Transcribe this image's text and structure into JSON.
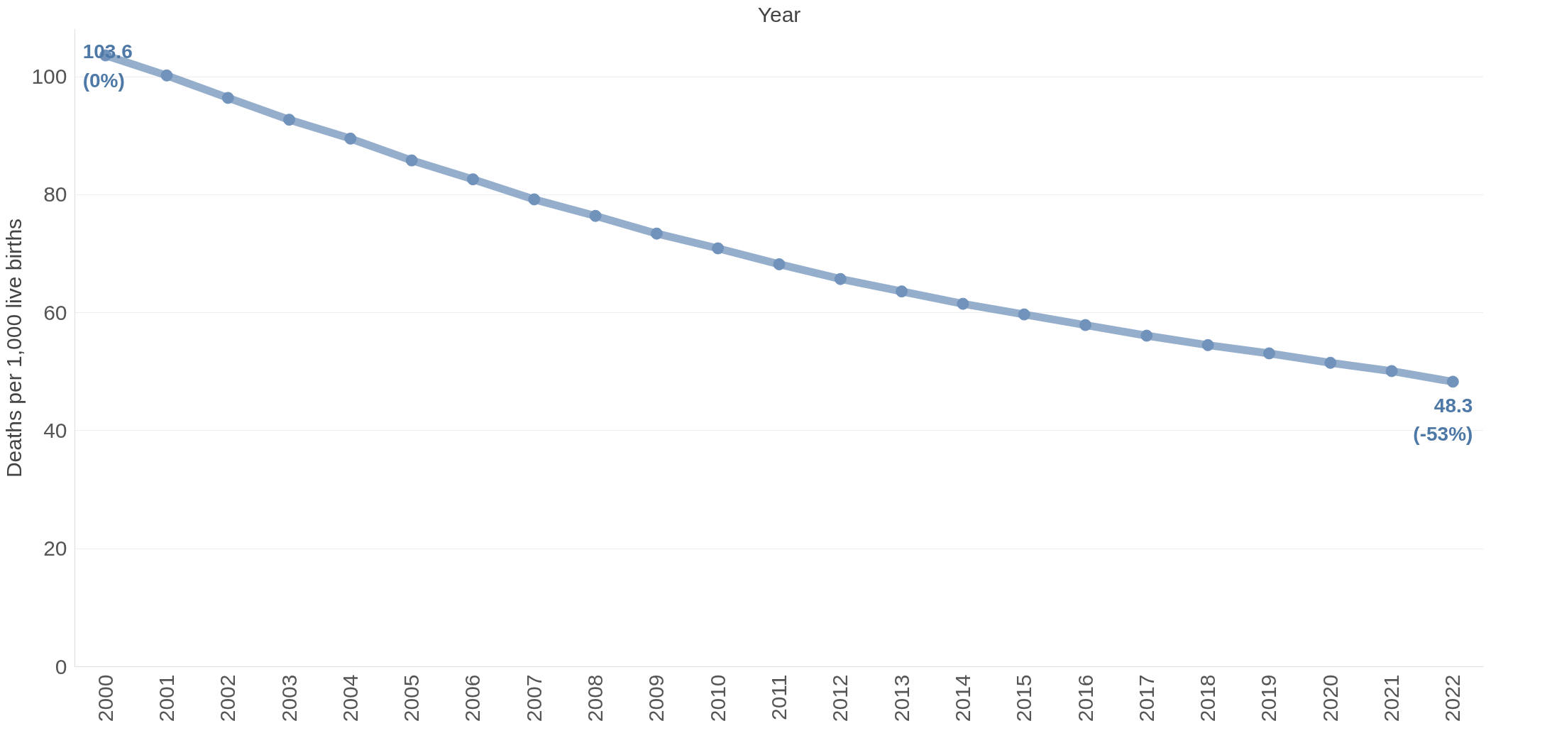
{
  "chart_data": {
    "type": "line",
    "xlabel": "Year",
    "ylabel": "Deaths per 1,000 live births",
    "categories": [
      "2000",
      "2001",
      "2002",
      "2003",
      "2004",
      "2005",
      "2006",
      "2007",
      "2008",
      "2009",
      "2010",
      "2011",
      "2012",
      "2013",
      "2014",
      "2015",
      "2016",
      "2017",
      "2018",
      "2019",
      "2020",
      "2021",
      "2022"
    ],
    "series": [
      {
        "color": "#7193bb",
        "values": [
          103.6,
          100.2,
          96.4,
          92.7,
          89.5,
          85.8,
          82.6,
          79.2,
          76.4,
          73.4,
          70.9,
          68.2,
          65.7,
          63.6,
          61.5,
          59.7,
          57.9,
          56.1,
          54.5,
          53.1,
          51.5,
          50.1,
          48.3
        ],
        "value_labels": [
          "103.6\n(0%)",
          null,
          null,
          null,
          null,
          null,
          null,
          null,
          null,
          null,
          null,
          null,
          null,
          null,
          null,
          null,
          null,
          null,
          null,
          null,
          null,
          null,
          "48.3\n(-53%)"
        ]
      }
    ],
    "ylim": [
      0,
      108
    ],
    "yticks": [
      0,
      20,
      40,
      60,
      80,
      100
    ],
    "grid": "y",
    "marker": "circle"
  }
}
